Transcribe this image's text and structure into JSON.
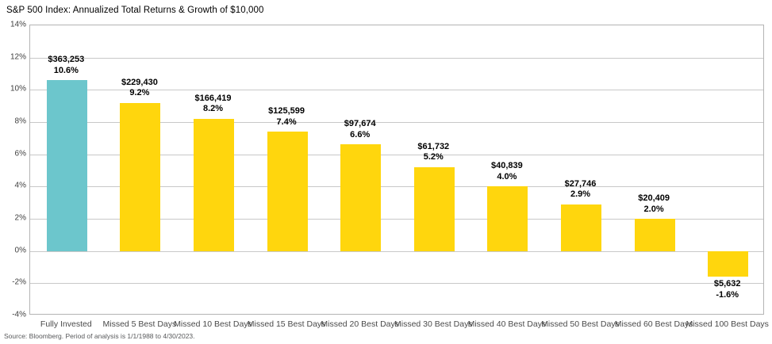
{
  "title": "S&P 500 Index: Annualized Total Returns & Growth of $10,000",
  "source_note": "Source: Bloomberg. Period of analysis is 1/1/1988 to 4/30/2023.",
  "colors": {
    "highlight_bar": "#6cc6cc",
    "bar": "#ffd60d",
    "gridline": "#c8c8c8",
    "plot_border": "#b4b4b4",
    "value_label": "#000000",
    "axis_text": "#4a4a4a",
    "source_text": "#58595b"
  },
  "chart_data": {
    "type": "bar",
    "title": "S&P 500 Index: Annualized Total Returns & Growth of $10,000",
    "categories": [
      "Fully Invested",
      "Missed 5 Best Days",
      "Missed 10 Best Days",
      "Missed 15 Best Days",
      "Missed 20 Best Days",
      "Missed 30 Best Days",
      "Missed 40 Best Days",
      "Missed 50 Best Days",
      "Missed 60 Best Days",
      "Missed 100 Best Days"
    ],
    "series": [
      {
        "name": "Annualized Total Return (%)",
        "values": [
          10.6,
          9.2,
          8.2,
          7.4,
          6.6,
          5.2,
          4.0,
          2.9,
          2.0,
          -1.6
        ]
      }
    ],
    "growth_of_10000_labels": [
      "$363,253",
      "$229,430",
      "$166,419",
      "$125,599",
      "$97,674",
      "$61,732",
      "$40,839",
      "$27,746",
      "$20,409",
      "$5,632"
    ],
    "percent_labels": [
      "10.6%",
      "9.2%",
      "8.2%",
      "7.4%",
      "6.6%",
      "5.2%",
      "4.0%",
      "2.9%",
      "2.0%",
      "-1.6%"
    ],
    "xlabel": "",
    "ylabel": "",
    "ylim": [
      -4,
      14
    ],
    "ytick_step": 2,
    "ytick_labels": [
      "14%",
      "12%",
      "10%",
      "8%",
      "6%",
      "4%",
      "2%",
      "0%",
      "-2%",
      "-4%"
    ],
    "grid": "horizontal",
    "legend_position": "none",
    "highlight_index": 0
  }
}
